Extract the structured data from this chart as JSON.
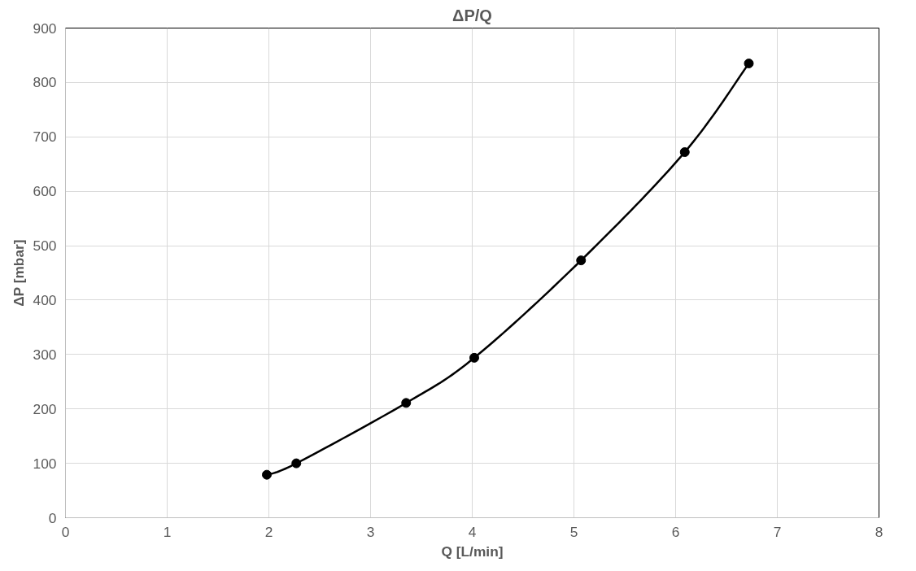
{
  "chart_data": {
    "type": "line",
    "title": "ΔP/Q",
    "xlabel": "Q [L/min]",
    "ylabel": "ΔP [mbar]",
    "x": [
      1.98,
      2.27,
      3.35,
      4.02,
      5.07,
      6.09,
      6.72
    ],
    "series": [
      {
        "color": "#000000",
        "values": [
          79,
          100,
          211,
          294,
          473,
          672,
          835
        ]
      }
    ],
    "xlim": [
      0,
      8
    ],
    "xticks": [
      0,
      1,
      2,
      3,
      4,
      5,
      6,
      7,
      8
    ],
    "ylim": [
      0,
      900
    ],
    "yticks": [
      0,
      100,
      200,
      300,
      400,
      500,
      600,
      700,
      800,
      900
    ],
    "grid": true,
    "marker": "circle",
    "line_style": "solid"
  }
}
